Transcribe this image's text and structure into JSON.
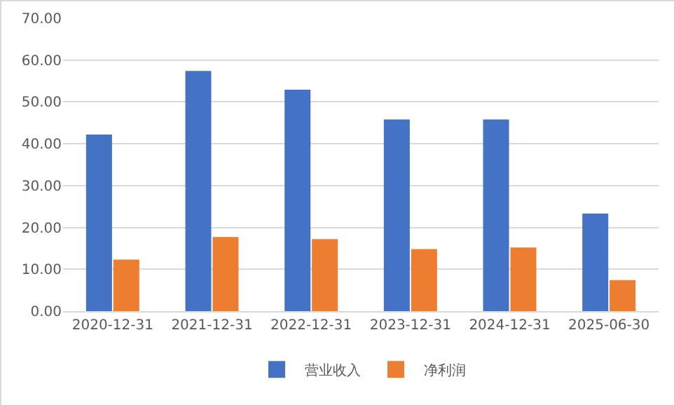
{
  "chart_data": {
    "type": "bar",
    "categories": [
      "2020-12-31",
      "2021-12-31",
      "2022-12-31",
      "2023-12-31",
      "2024-12-31",
      "2025-06-30"
    ],
    "series": [
      {
        "name": "营业收入",
        "color": "#4472c4",
        "values": [
          42.2,
          57.4,
          52.9,
          45.8,
          45.8,
          23.3
        ]
      },
      {
        "name": "净利润",
        "color": "#ed7d31",
        "values": [
          12.3,
          17.7,
          17.2,
          14.8,
          15.2,
          7.4
        ]
      }
    ],
    "ylim": [
      0,
      70
    ],
    "yticks": [
      {
        "value": 0,
        "label": "0.00"
      },
      {
        "value": 10,
        "label": "10.00"
      },
      {
        "value": 20,
        "label": "20.00"
      },
      {
        "value": 30,
        "label": "30.00"
      },
      {
        "value": 40,
        "label": "40.00"
      },
      {
        "value": 50,
        "label": "50.00"
      },
      {
        "value": 60,
        "label": "60.00"
      },
      {
        "value": 70,
        "label": "70.00"
      }
    ],
    "grid": "y",
    "legend": "bottom"
  }
}
